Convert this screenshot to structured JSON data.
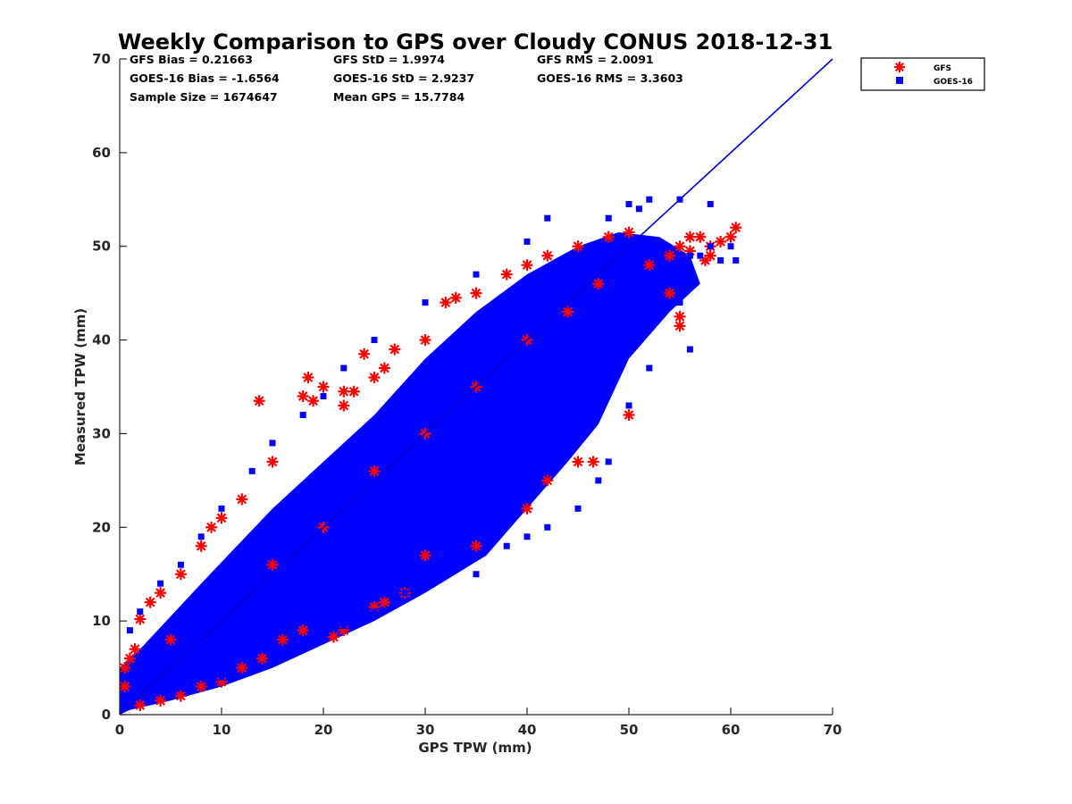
{
  "chart_data": {
    "type": "scatter",
    "title": "Weekly Comparison to GPS over Cloudy CONUS 2018-12-31",
    "xlabel": "GPS TPW (mm)",
    "ylabel": "Measured TPW (mm)",
    "xlim": [
      0,
      70
    ],
    "ylim": [
      0,
      70
    ],
    "xticks": [
      "0",
      "10",
      "20",
      "30",
      "40",
      "50",
      "60",
      "70"
    ],
    "yticks": [
      "0",
      "10",
      "20",
      "30",
      "40",
      "50",
      "60",
      "70"
    ],
    "grid": false,
    "legend_position": "outside-top-right",
    "stats": [
      "GFS Bias = 0.21663",
      "GFS StD = 1.9974",
      "GFS RMS = 2.0091",
      "GOES-16 Bias = -1.6564",
      "GOES-16 StD = 2.9237",
      "GOES-16 RMS = 3.3603",
      "Sample Size = 1674647",
      "Mean GPS = 15.7784"
    ],
    "reference_line": {
      "x": [
        0,
        70
      ],
      "y": [
        0,
        70
      ],
      "color": "#0000cc"
    },
    "series": [
      {
        "name": "GFS",
        "marker": "asterisk",
        "color": "#ff0000",
        "points": [
          [
            1,
            6
          ],
          [
            1.5,
            7
          ],
          [
            2,
            10.2
          ],
          [
            3,
            12
          ],
          [
            4,
            13
          ],
          [
            6,
            15
          ],
          [
            8,
            18
          ],
          [
            9,
            20
          ],
          [
            10,
            21
          ],
          [
            12,
            23
          ],
          [
            13.7,
            33.5
          ],
          [
            15,
            27
          ],
          [
            18,
            34
          ],
          [
            18.5,
            36
          ],
          [
            19,
            33.5
          ],
          [
            20,
            35
          ],
          [
            22,
            33
          ],
          [
            22,
            34.5
          ],
          [
            23,
            34.5
          ],
          [
            24,
            38.5
          ],
          [
            25,
            36
          ],
          [
            26,
            37
          ],
          [
            27,
            39
          ],
          [
            30,
            40
          ],
          [
            32,
            44
          ],
          [
            33,
            44.5
          ],
          [
            35,
            45
          ],
          [
            38,
            47
          ],
          [
            40,
            48
          ],
          [
            42,
            49
          ],
          [
            45,
            50
          ],
          [
            48,
            51
          ],
          [
            50,
            51.5
          ],
          [
            55,
            50
          ],
          [
            56,
            51
          ],
          [
            57,
            51
          ],
          [
            58,
            50
          ],
          [
            59,
            50.5
          ],
          [
            60,
            51
          ],
          [
            60.5,
            52
          ],
          [
            55,
            42.5
          ],
          [
            55,
            41.5
          ],
          [
            54,
            45
          ],
          [
            50,
            32
          ],
          [
            45,
            27
          ],
          [
            46.5,
            27
          ],
          [
            42,
            25
          ],
          [
            40,
            22
          ],
          [
            35,
            18
          ],
          [
            30,
            17
          ],
          [
            28,
            13
          ],
          [
            26,
            12
          ],
          [
            25,
            11.5
          ],
          [
            21,
            8.3
          ],
          [
            22,
            9
          ],
          [
            18,
            9
          ],
          [
            16,
            8
          ],
          [
            14,
            6
          ],
          [
            12,
            5
          ],
          [
            10,
            3.5
          ],
          [
            8,
            3
          ],
          [
            6,
            2
          ],
          [
            4,
            1.5
          ],
          [
            2,
            1
          ],
          [
            0.5,
            3
          ],
          [
            0.5,
            5
          ],
          [
            5,
            8
          ],
          [
            15,
            16
          ],
          [
            20,
            20
          ],
          [
            25,
            26
          ],
          [
            30,
            30
          ],
          [
            35,
            35
          ],
          [
            40,
            40
          ],
          [
            44,
            43
          ],
          [
            47,
            46
          ],
          [
            52,
            48
          ],
          [
            57.5,
            48.5
          ],
          [
            58,
            49
          ],
          [
            56,
            49.5
          ],
          [
            54,
            49
          ]
        ]
      },
      {
        "name": "GOES-16",
        "marker": "square",
        "color": "#0000ff",
        "points": [
          [
            0.5,
            1
          ],
          [
            1,
            2
          ],
          [
            2,
            3
          ],
          [
            3,
            4
          ],
          [
            4,
            5
          ],
          [
            5,
            5
          ],
          [
            6,
            6
          ],
          [
            7,
            7
          ],
          [
            8,
            8
          ],
          [
            9,
            8
          ],
          [
            10,
            9
          ],
          [
            12,
            11
          ],
          [
            14,
            12
          ],
          [
            16,
            14
          ],
          [
            18,
            16
          ],
          [
            20,
            17
          ],
          [
            22,
            19
          ],
          [
            24,
            21
          ],
          [
            26,
            22
          ],
          [
            28,
            24
          ],
          [
            30,
            26
          ],
          [
            32,
            28
          ],
          [
            34,
            30
          ],
          [
            36,
            32
          ],
          [
            38,
            34
          ],
          [
            40,
            36
          ],
          [
            42,
            38
          ],
          [
            44,
            40
          ],
          [
            46,
            42
          ],
          [
            48,
            44
          ],
          [
            50,
            46
          ],
          [
            52,
            47
          ],
          [
            54,
            48
          ],
          [
            56,
            49
          ],
          [
            58,
            50
          ],
          [
            60,
            50
          ],
          [
            60.5,
            48.5
          ],
          [
            59,
            48.5
          ],
          [
            57,
            49
          ],
          [
            58,
            54.5
          ],
          [
            55,
            55
          ],
          [
            52,
            55
          ],
          [
            50,
            54.5
          ],
          [
            51,
            54
          ],
          [
            48,
            53
          ],
          [
            42,
            53
          ],
          [
            40,
            50.5
          ],
          [
            35,
            47
          ],
          [
            30,
            44
          ],
          [
            25,
            40
          ],
          [
            22,
            37
          ],
          [
            20,
            34
          ],
          [
            18,
            32
          ],
          [
            15,
            29
          ],
          [
            13,
            26
          ],
          [
            10,
            22
          ],
          [
            8,
            19
          ],
          [
            6,
            16
          ],
          [
            4,
            14
          ],
          [
            2,
            11
          ],
          [
            1,
            9
          ],
          [
            56,
            39
          ],
          [
            52,
            37
          ],
          [
            50,
            33
          ],
          [
            48,
            27
          ],
          [
            47,
            25
          ],
          [
            45,
            22
          ],
          [
            42,
            20
          ],
          [
            40,
            19
          ],
          [
            38,
            18
          ],
          [
            35,
            15
          ],
          [
            32,
            15
          ],
          [
            30,
            14
          ],
          [
            28,
            13
          ],
          [
            25,
            11
          ],
          [
            22,
            9.5
          ],
          [
            20,
            8
          ],
          [
            15,
            7
          ],
          [
            10,
            4
          ],
          [
            5,
            2
          ],
          [
            55,
            44
          ],
          [
            52,
            42
          ],
          [
            49,
            38
          ],
          [
            46,
            36
          ],
          [
            44,
            31
          ],
          [
            40,
            28
          ],
          [
            36,
            24
          ],
          [
            33,
            21
          ],
          [
            30,
            19
          ],
          [
            27,
            17
          ],
          [
            24,
            15
          ],
          [
            21,
            13
          ],
          [
            18,
            11
          ],
          [
            15,
            9
          ],
          [
            12,
            7
          ],
          [
            9,
            5
          ],
          [
            6,
            3
          ],
          [
            3,
            2
          ],
          [
            16,
            20
          ],
          [
            24,
            28
          ],
          [
            32,
            36
          ],
          [
            38,
            41
          ],
          [
            43,
            45
          ],
          [
            28,
            33
          ],
          [
            35,
            38
          ],
          [
            44,
            48
          ],
          [
            20,
            24
          ],
          [
            12,
            15
          ],
          [
            7,
            10
          ],
          [
            38,
            30
          ]
        ]
      }
    ]
  }
}
